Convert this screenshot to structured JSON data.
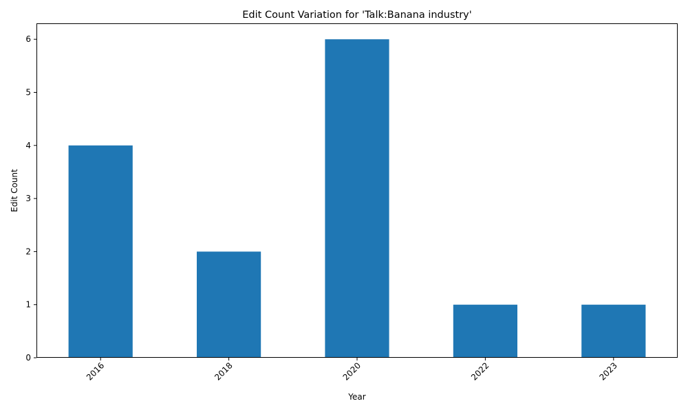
{
  "chart_data": {
    "type": "bar",
    "title": "Edit Count Variation for 'Talk:Banana industry'",
    "xlabel": "Year",
    "ylabel": "Edit Count",
    "categories": [
      "2016",
      "2018",
      "2020",
      "2022",
      "2023"
    ],
    "values": [
      4,
      2,
      6,
      1,
      1
    ],
    "ylim": [
      0,
      6.3
    ],
    "yticks": [
      0,
      1,
      2,
      3,
      4,
      5,
      6
    ],
    "xtick_rotation_deg": 45,
    "bar_color": "#1f77b4",
    "grid": false,
    "legend": "none"
  }
}
